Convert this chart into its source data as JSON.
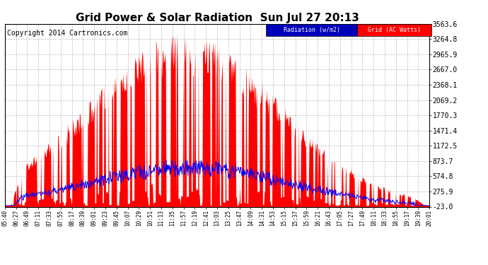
{
  "title": "Grid Power & Solar Radiation  Sun Jul 27 20:13",
  "copyright": "Copyright 2014 Cartronics.com",
  "yticks": [
    -23.0,
    275.9,
    574.8,
    873.7,
    1172.5,
    1471.4,
    1770.3,
    2069.2,
    2368.1,
    2667.0,
    2965.9,
    3264.8,
    3563.6
  ],
  "xtick_labels": [
    "05:40",
    "06:27",
    "06:49",
    "07:11",
    "07:33",
    "07:55",
    "08:17",
    "08:39",
    "09:01",
    "09:23",
    "09:45",
    "10:07",
    "10:29",
    "10:51",
    "11:13",
    "11:35",
    "11:57",
    "12:19",
    "12:41",
    "13:03",
    "13:25",
    "13:47",
    "14:09",
    "14:31",
    "14:53",
    "15:15",
    "15:37",
    "15:59",
    "16:21",
    "16:43",
    "17:05",
    "17:27",
    "17:49",
    "18:11",
    "18:33",
    "18:55",
    "19:17",
    "19:39",
    "20:01"
  ],
  "bg_color": "#ffffff",
  "plot_bg_color": "#ffffff",
  "grid_color": "#bbbbbb",
  "title_color": "#000000",
  "solar_color": "#ff0000",
  "grid_line_color": "#0000ff",
  "ymin": -23.0,
  "ymax": 3563.6,
  "title_fontsize": 11,
  "copyright_fontsize": 7,
  "legend_radiation_text": "Radiation (w/m2)",
  "legend_grid_text": "Grid (AC Watts)"
}
